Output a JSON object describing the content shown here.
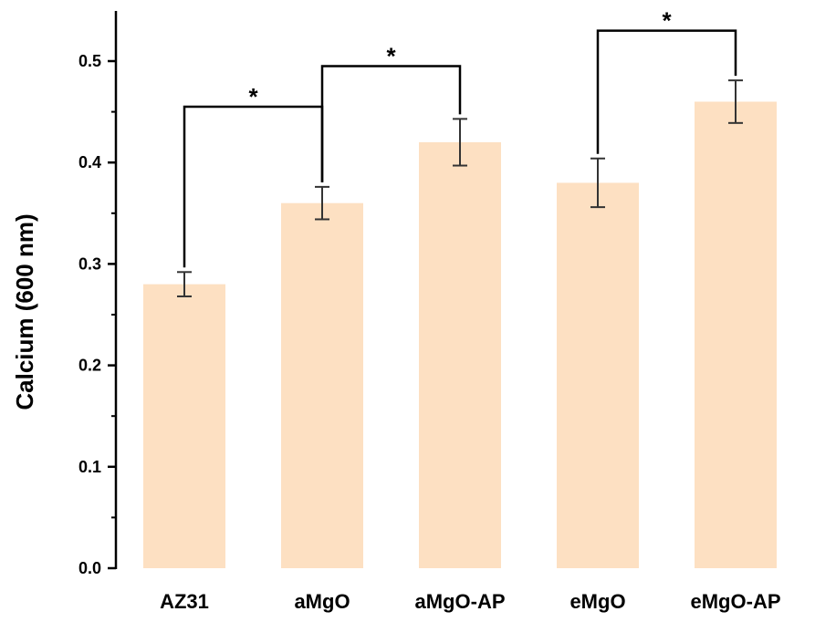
{
  "chart_data": {
    "type": "bar",
    "title": "",
    "xlabel": "",
    "ylabel": "Calcium (600 nm)",
    "categories": [
      "AZ31",
      "aMgO",
      "aMgO-AP",
      "eMgO",
      "eMgO-AP"
    ],
    "values": [
      0.28,
      0.36,
      0.42,
      0.38,
      0.46
    ],
    "errors": [
      0.012,
      0.016,
      0.023,
      0.024,
      0.021
    ],
    "ylim": [
      0,
      0.55
    ],
    "yticks": [
      "0.0",
      "0.1",
      "0.2",
      "0.3",
      "0.4",
      "0.5"
    ],
    "grid": false,
    "bar_color": "#fde0c2",
    "significance": [
      {
        "from": 0,
        "to": 1,
        "label": "*",
        "level": 0.455
      },
      {
        "from": 1,
        "to": 2,
        "label": "*",
        "level": 0.495
      },
      {
        "from": 3,
        "to": 4,
        "label": "*",
        "level": 0.53
      }
    ]
  }
}
